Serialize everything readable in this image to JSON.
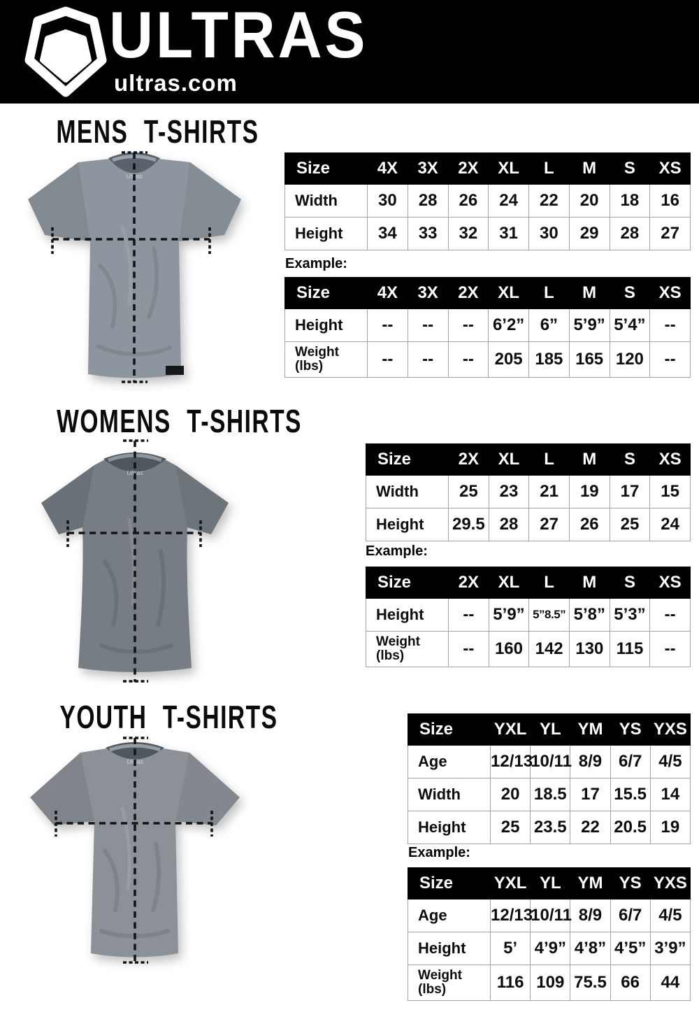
{
  "page": {
    "bg": "#ffffff",
    "accent": "#000000",
    "table_border": "#a3a3a3"
  },
  "header": {
    "brand": "ULTRAS",
    "domain": "ultras.com",
    "logo_icon": "pentagon-shield-logo",
    "bg": "#000000",
    "text_color": "#ffffff"
  },
  "sections": [
    {
      "id": "mens",
      "title": "MENS T-SHIRTS",
      "example_label": "Example:",
      "shirt": {
        "icon": "mens-tshirt-photo",
        "color": "#8d969e",
        "neck_label": "Ultras"
      },
      "size_table": {
        "columns": [
          "Size",
          "4X",
          "3X",
          "2X",
          "XL",
          "L",
          "M",
          "S",
          "XS"
        ],
        "rows": [
          {
            "label_lines": [
              "Width"
            ],
            "values": [
              "30",
              "28",
              "26",
              "24",
              "22",
              "20",
              "18",
              "16"
            ]
          },
          {
            "label_lines": [
              "Height"
            ],
            "values": [
              "34",
              "33",
              "32",
              "31",
              "30",
              "29",
              "28",
              "27"
            ]
          }
        ]
      },
      "example_table": {
        "columns": [
          "Size",
          "4X",
          "3X",
          "2X",
          "XL",
          "L",
          "M",
          "S",
          "XS"
        ],
        "rows": [
          {
            "label_lines": [
              "Height"
            ],
            "values": [
              "--",
              "--",
              "--",
              "6’2”",
              "6”",
              "5’9”",
              "5’4”",
              "--"
            ]
          },
          {
            "label_lines": [
              "Weight",
              "(lbs)"
            ],
            "values": [
              "--",
              "--",
              "--",
              "205",
              "185",
              "165",
              "120",
              "--"
            ]
          }
        ]
      }
    },
    {
      "id": "womens",
      "title": "WOMENS T-SHIRTS",
      "example_label": "Example:",
      "shirt": {
        "icon": "womens-tshirt-photo",
        "color": "#767d84",
        "neck_label": "Ultras"
      },
      "size_table": {
        "columns": [
          "Size",
          "2X",
          "XL",
          "L",
          "M",
          "S",
          "XS"
        ],
        "rows": [
          {
            "label_lines": [
              "Width"
            ],
            "values": [
              "25",
              "23",
              "21",
              "19",
              "17",
              "15"
            ]
          },
          {
            "label_lines": [
              "Height"
            ],
            "values": [
              "29.5",
              "28",
              "27",
              "26",
              "25",
              "24"
            ]
          }
        ]
      },
      "example_table": {
        "columns": [
          "Size",
          "2X",
          "XL",
          "L",
          "M",
          "S",
          "XS"
        ],
        "rows": [
          {
            "label_lines": [
              "Height"
            ],
            "values": [
              "--",
              "5’9”",
              "5”8.5”",
              "5’8”",
              "5’3”",
              "--"
            ]
          },
          {
            "label_lines": [
              "Weight",
              "(lbs)"
            ],
            "values": [
              "--",
              "160",
              "142",
              "130",
              "115",
              "--"
            ]
          }
        ]
      }
    },
    {
      "id": "youth",
      "title": "YOUTH T-SHIRTS",
      "example_label": "Example:",
      "shirt": {
        "icon": "youth-tshirt-photo",
        "color": "#8b9197",
        "neck_label": "Ultras"
      },
      "size_table": {
        "columns": [
          "Size",
          "YXL",
          "YL",
          "YM",
          "YS",
          "YXS"
        ],
        "rows": [
          {
            "label_lines": [
              "Age"
            ],
            "values": [
              "12/13",
              "10/11",
              "8/9",
              "6/7",
              "4/5"
            ]
          },
          {
            "label_lines": [
              "Width"
            ],
            "values": [
              "20",
              "18.5",
              "17",
              "15.5",
              "14"
            ]
          },
          {
            "label_lines": [
              "Height"
            ],
            "values": [
              "25",
              "23.5",
              "22",
              "20.5",
              "19"
            ]
          }
        ]
      },
      "example_table": {
        "columns": [
          "Size",
          "YXL",
          "YL",
          "YM",
          "YS",
          "YXS"
        ],
        "rows": [
          {
            "label_lines": [
              "Age"
            ],
            "values": [
              "12/13",
              "10/11",
              "8/9",
              "6/7",
              "4/5"
            ]
          },
          {
            "label_lines": [
              "Height"
            ],
            "values": [
              "5’",
              "4’9”",
              "4’8”",
              "4’5”",
              "3’9”"
            ]
          },
          {
            "label_lines": [
              "Weight",
              "(lbs)"
            ],
            "values": [
              "116",
              "109",
              "75.5",
              "66",
              "44"
            ]
          }
        ]
      }
    }
  ]
}
